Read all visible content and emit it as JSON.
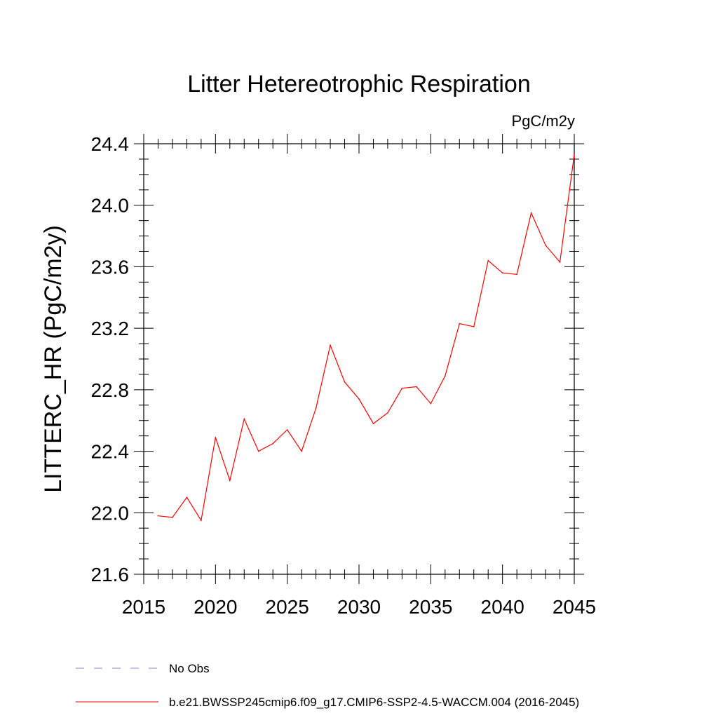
{
  "chart_data": {
    "type": "line",
    "title": "Litter Hetereotrophic Respiration",
    "units_label": "PgC/m2y",
    "ylabel": "LITTERC_HR  (PgC/m2y)",
    "xlabel": "",
    "xlim": [
      2015,
      2045
    ],
    "ylim": [
      21.6,
      24.4
    ],
    "x_ticks": [
      "2015",
      "2020",
      "2025",
      "2030",
      "2035",
      "2040",
      "2045"
    ],
    "y_ticks": [
      "21.6",
      "22.0",
      "22.4",
      "22.8",
      "23.2",
      "23.6",
      "24.0",
      "24.4"
    ],
    "x": [
      2016,
      2017,
      2018,
      2019,
      2020,
      2021,
      2022,
      2023,
      2024,
      2025,
      2026,
      2027,
      2028,
      2029,
      2030,
      2031,
      2032,
      2033,
      2034,
      2035,
      2036,
      2037,
      2038,
      2039,
      2040,
      2041,
      2042,
      2043,
      2044,
      2045
    ],
    "series": [
      {
        "name": "b.e21.BWSSP245cmip6.f09_g17.CMIP6-SSP2-4.5-WACCM.004 (2016-2045)",
        "color": "#ff0000",
        "values": [
          21.98,
          21.97,
          22.1,
          21.95,
          22.49,
          22.21,
          22.61,
          22.4,
          22.45,
          22.54,
          22.4,
          22.68,
          23.09,
          22.85,
          22.74,
          22.58,
          22.65,
          22.81,
          22.82,
          22.71,
          22.89,
          23.23,
          23.21,
          23.64,
          23.56,
          23.55,
          23.95,
          23.74,
          23.63,
          24.33
        ]
      }
    ],
    "legend": [
      {
        "label": "No Obs",
        "style": "dashed",
        "color": "#8a7fd0"
      },
      {
        "label": "b.e21.BWSSP245cmip6.f09_g17.CMIP6-SSP2-4.5-WACCM.004 (2016-2045)",
        "style": "solid",
        "color": "#ff0000"
      }
    ],
    "legend_position": "bottom-left"
  }
}
